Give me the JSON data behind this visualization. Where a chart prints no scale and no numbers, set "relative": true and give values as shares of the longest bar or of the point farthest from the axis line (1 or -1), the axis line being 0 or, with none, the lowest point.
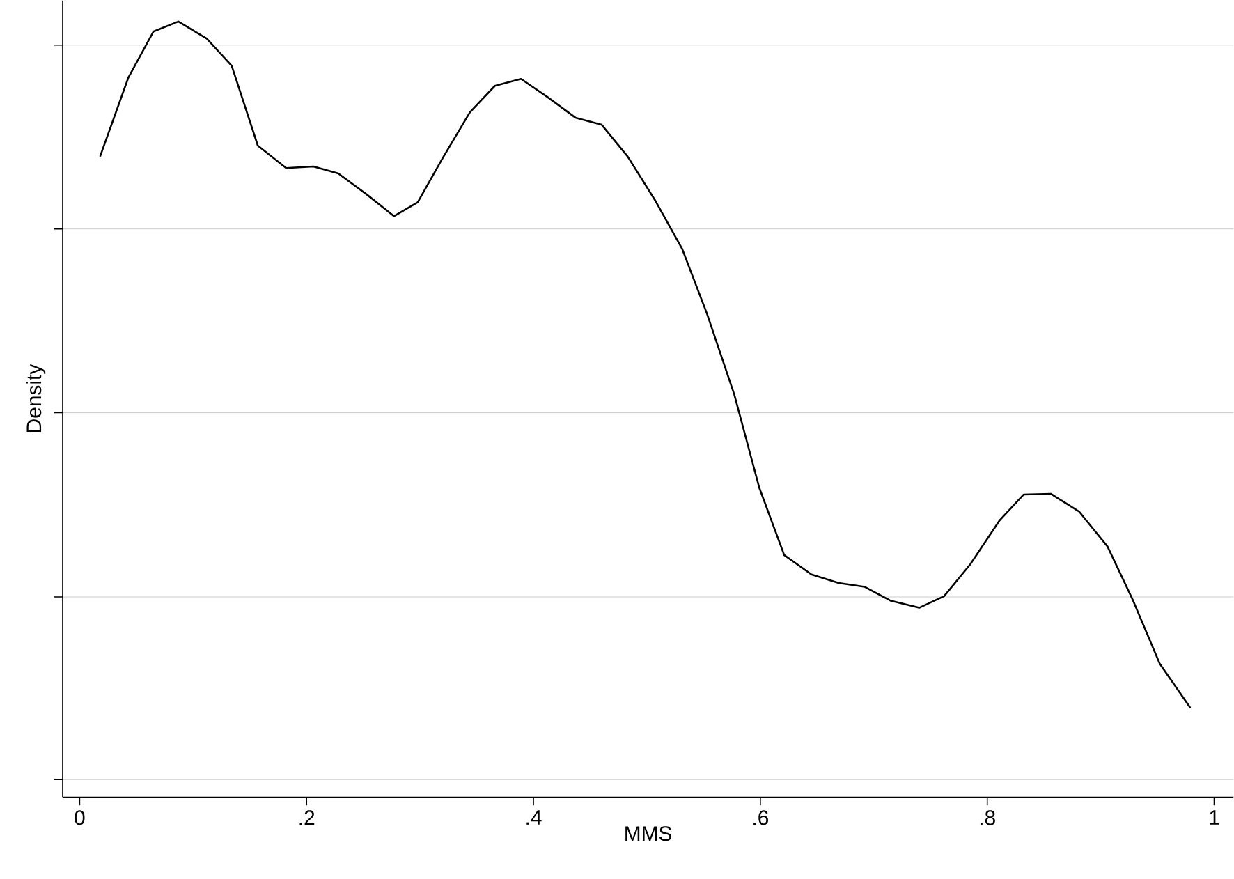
{
  "chart_data": {
    "type": "line",
    "xlabel": "MMS",
    "ylabel": "Density",
    "relative": true,
    "grid": "y",
    "color": "#000000",
    "xlim": [
      -0.015,
      1.017
    ],
    "xticks": [
      0,
      {
        "value": 0.2,
        "label": ".2"
      },
      {
        "value": 0.4,
        "label": ".4"
      },
      {
        "value": 0.6,
        "label": ".6"
      },
      {
        "value": 0.8,
        "label": ".8"
      },
      1
    ],
    "x": [
      0.018,
      0.043,
      0.065,
      0.087,
      0.112,
      0.134,
      0.157,
      0.182,
      0.206,
      0.228,
      0.253,
      0.277,
      0.298,
      0.32,
      0.344,
      0.366,
      0.389,
      0.412,
      0.437,
      0.46,
      0.483,
      0.507,
      0.531,
      0.553,
      0.577,
      0.599,
      0.621,
      0.645,
      0.669,
      0.692,
      0.715,
      0.74,
      0.762,
      0.785,
      0.811,
      0.832,
      0.856,
      0.881,
      0.906,
      0.928,
      0.952,
      0.979
    ],
    "values": [
      0.826,
      0.928,
      0.987,
      1.0,
      0.978,
      0.943,
      0.84,
      0.811,
      0.813,
      0.804,
      0.777,
      0.749,
      0.767,
      0.824,
      0.883,
      0.917,
      0.926,
      0.903,
      0.876,
      0.867,
      0.826,
      0.77,
      0.707,
      0.623,
      0.519,
      0.399,
      0.312,
      0.287,
      0.276,
      0.271,
      0.253,
      0.244,
      0.259,
      0.3,
      0.357,
      0.39,
      0.391,
      0.368,
      0.323,
      0.255,
      0.172,
      0.115
    ]
  }
}
